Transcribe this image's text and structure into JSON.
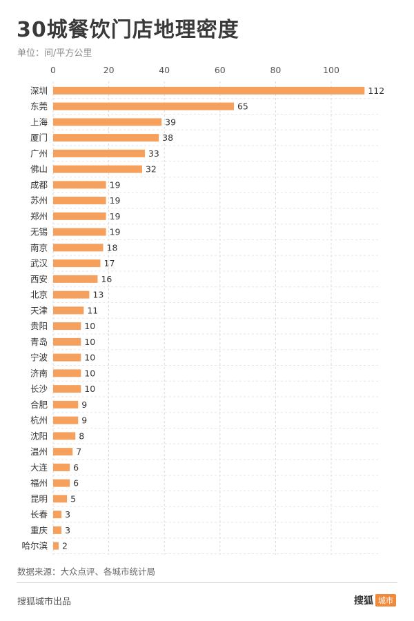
{
  "title": "30城餐饮门店地理密度",
  "unit_label": "单位：间/平方公里",
  "source": "数据来源：大众点评、各城市统计局",
  "producer": "搜狐城市出品",
  "logo": {
    "main": "搜狐",
    "tag": "城市"
  },
  "colors": {
    "bar": "#f5a05d",
    "grid": "#d9d9d9",
    "tick_text": "#555555",
    "label_text": "#333333"
  },
  "chart_data": {
    "type": "bar",
    "orientation": "horizontal",
    "categories": [
      "深圳",
      "东莞",
      "上海",
      "厦门",
      "广州",
      "佛山",
      "成都",
      "苏州",
      "郑州",
      "无锡",
      "南京",
      "武汉",
      "西安",
      "北京",
      "天津",
      "贵阳",
      "青岛",
      "宁波",
      "济南",
      "长沙",
      "合肥",
      "杭州",
      "沈阳",
      "温州",
      "大连",
      "福州",
      "昆明",
      "长春",
      "重庆",
      "哈尔滨"
    ],
    "values": [
      112,
      65,
      39,
      38,
      33,
      32,
      19,
      19,
      19,
      19,
      18,
      17,
      16,
      13,
      11,
      10,
      10,
      10,
      10,
      10,
      9,
      9,
      8,
      7,
      6,
      6,
      5,
      3,
      3,
      2
    ],
    "xticks": [
      0,
      20,
      40,
      60,
      80,
      100
    ],
    "xlim": [
      0,
      116
    ],
    "axis_position": "top",
    "grid": true,
    "grid_style": "dashed",
    "title": "30城餐饮门店地理密度",
    "xlabel": "",
    "ylabel": ""
  }
}
